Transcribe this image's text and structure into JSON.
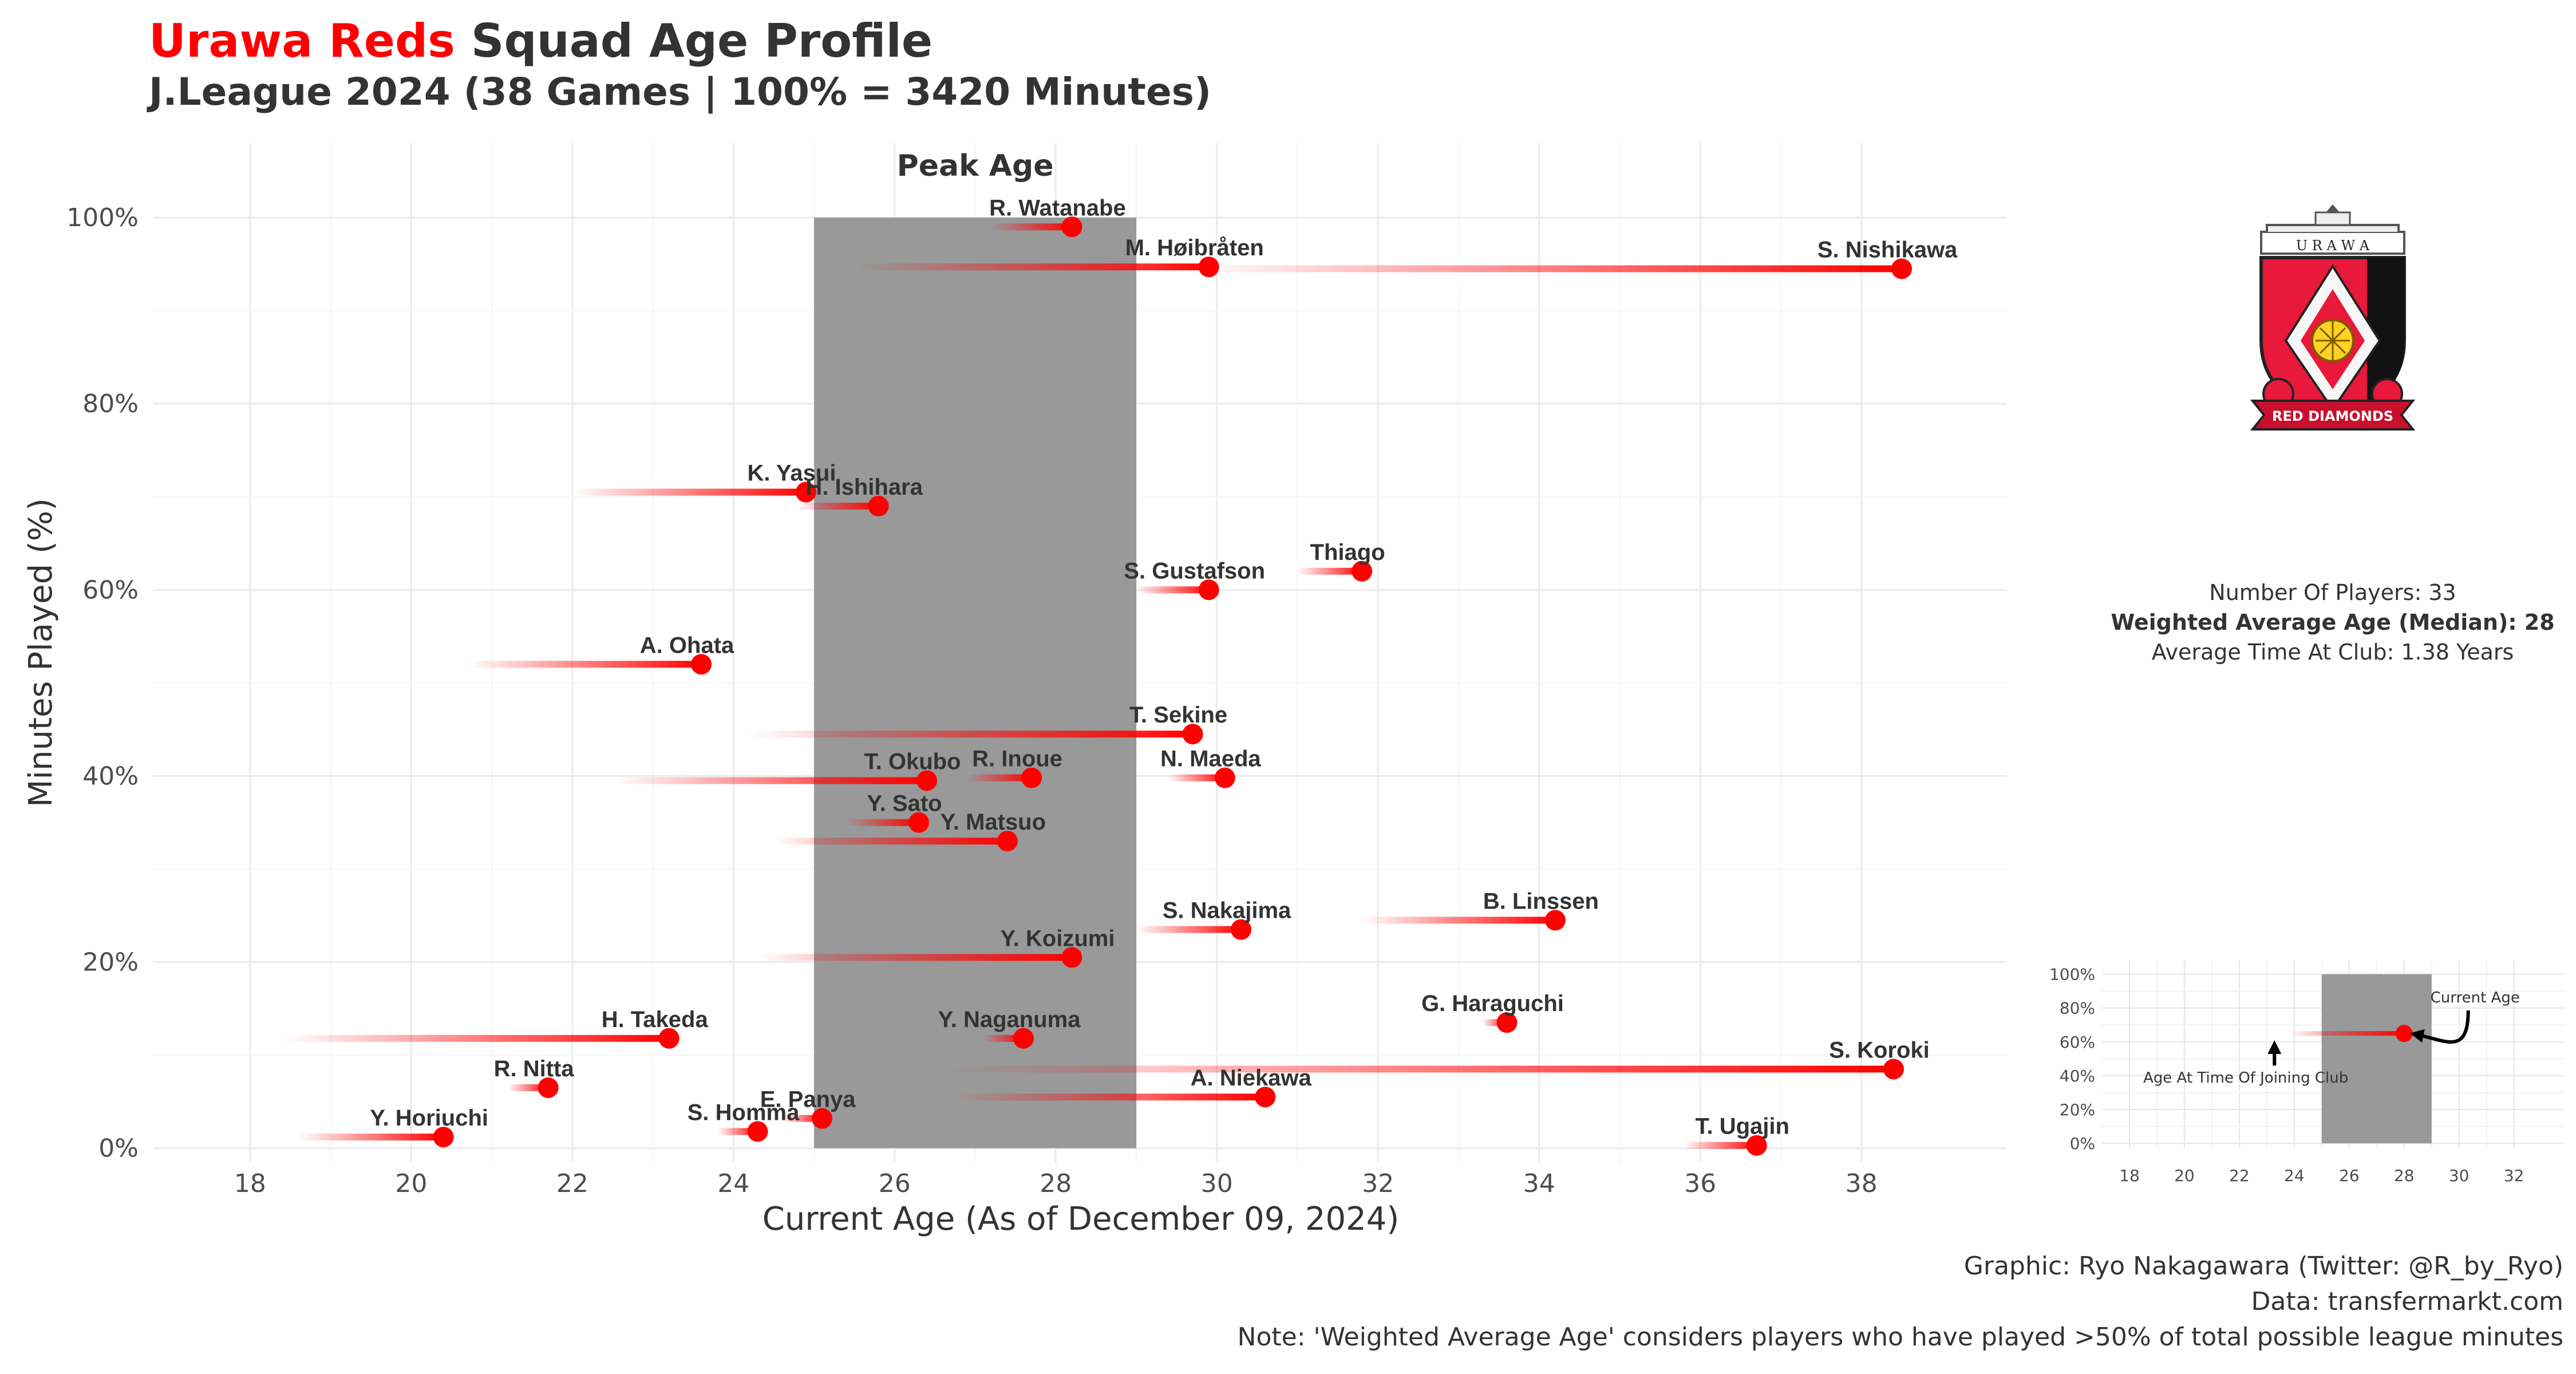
{
  "title": {
    "club": "Urawa Reds",
    "main": "Squad Age Profile",
    "subtitle": "J.League 2024 (38 Games | 100% = 3420 Minutes)"
  },
  "peak_label": "Peak Age",
  "stats": {
    "players": "Number Of Players: 33",
    "weighted_age": "Weighted Average Age (Median): 28",
    "time_at_club": "Average Time At Club: 1.38 Years"
  },
  "caption": {
    "graphic": "Graphic: Ryo Nakagawara (Twitter: @R_by_Ryo)",
    "data": "Data: transfermarkt.com",
    "note": "Note: 'Weighted Average Age' considers players who have played >50% of total possible league minutes"
  },
  "logo_text": {
    "top": "U R A W A",
    "banner": "RED DIAMONDS"
  },
  "chart_data": [
    {
      "type": "scatter",
      "xlabel": "Current Age (As of December 09, 2024)",
      "ylabel": "Minutes Played (%)",
      "xlim": [
        16.8,
        39.8
      ],
      "ylim": [
        -1.5,
        108
      ],
      "xticks": [
        18,
        20,
        22,
        24,
        26,
        28,
        30,
        32,
        34,
        36,
        38
      ],
      "xtick_labels": [
        "18",
        "20",
        "22",
        "24",
        "26",
        "28",
        "30",
        "32",
        "34",
        "36",
        "38"
      ],
      "yticks": [
        0,
        20,
        40,
        60,
        80,
        100
      ],
      "ytick_labels": [
        "0%",
        "20%",
        "40%",
        "60%",
        "80%",
        "100%"
      ],
      "grid": true,
      "peak_age_range": [
        25,
        29
      ],
      "colors": {
        "point": "#ff0000",
        "segment": "#ff0000",
        "peak_band": "#999999"
      },
      "players": [
        {
          "name": "R. Watanabe",
          "age": 28.2,
          "join_age": 27.2,
          "minutes_pct": 99
        },
        {
          "name": "M. Høibråten",
          "age": 29.9,
          "join_age": 25.5,
          "minutes_pct": 94.7
        },
        {
          "name": "S. Nishikawa",
          "age": 38.5,
          "join_age": 29.7,
          "minutes_pct": 94.5
        },
        {
          "name": "K. Yasui",
          "age": 24.9,
          "join_age": 22,
          "minutes_pct": 70.5
        },
        {
          "name": "H. Ishihara",
          "age": 25.8,
          "join_age": 24.8,
          "minutes_pct": 69
        },
        {
          "name": "Thiago",
          "age": 31.8,
          "join_age": 31,
          "minutes_pct": 62
        },
        {
          "name": "S. Gustafson",
          "age": 29.9,
          "join_age": 29,
          "minutes_pct": 60
        },
        {
          "name": "A. Ohata",
          "age": 23.6,
          "join_age": 20.7,
          "minutes_pct": 52
        },
        {
          "name": "T. Sekine",
          "age": 29.7,
          "join_age": 24.2,
          "minutes_pct": 44.5
        },
        {
          "name": "T. Okubo",
          "age": 26.4,
          "join_age": 22.5,
          "minutes_pct": 39.5
        },
        {
          "name": "R. Inoue",
          "age": 27.7,
          "join_age": 26.9,
          "minutes_pct": 39.8
        },
        {
          "name": "N. Maeda",
          "age": 30.1,
          "join_age": 29.4,
          "minutes_pct": 39.8
        },
        {
          "name": "Y. Sato",
          "age": 26.3,
          "join_age": 25.4,
          "minutes_pct": 35
        },
        {
          "name": "Y. Matsuo",
          "age": 27.4,
          "join_age": 24.5,
          "minutes_pct": 33
        },
        {
          "name": "B. Linssen",
          "age": 34.2,
          "join_age": 31.8,
          "minutes_pct": 24.5
        },
        {
          "name": "S. Nakajima",
          "age": 30.3,
          "join_age": 29,
          "minutes_pct": 23.5
        },
        {
          "name": "Y. Koizumi",
          "age": 28.2,
          "join_age": 24.3,
          "minutes_pct": 20.5
        },
        {
          "name": "G. Haraguchi",
          "age": 33.6,
          "join_age": 33.3,
          "minutes_pct": 13.5
        },
        {
          "name": "H. Takeda",
          "age": 23.2,
          "join_age": 18.4,
          "minutes_pct": 11.8
        },
        {
          "name": "Y. Naganuma",
          "age": 27.6,
          "join_age": 27.1,
          "minutes_pct": 11.8
        },
        {
          "name": "S. Koroki",
          "age": 38.4,
          "join_age": 26.5,
          "minutes_pct": 8.5
        },
        {
          "name": "R. Nitta",
          "age": 21.7,
          "join_age": 21.2,
          "minutes_pct": 6.5
        },
        {
          "name": "A. Niekawa",
          "age": 30.6,
          "join_age": 26.7,
          "minutes_pct": 5.5
        },
        {
          "name": "E. Panya",
          "age": 25.1,
          "join_age": 24.6,
          "minutes_pct": 3.2
        },
        {
          "name": "S. Homma",
          "age": 24.3,
          "join_age": 23.8,
          "minutes_pct": 1.8
        },
        {
          "name": "Y. Horiuchi",
          "age": 20.4,
          "join_age": 18.6,
          "minutes_pct": 1.2
        },
        {
          "name": "T. Ugajin",
          "age": 36.7,
          "join_age": 35.8,
          "minutes_pct": 0.3
        }
      ]
    },
    {
      "type": "scatter",
      "xlim": [
        17,
        33.8
      ],
      "ylim": [
        -3,
        108
      ],
      "xticks": [
        18,
        20,
        22,
        24,
        26,
        28,
        30,
        32
      ],
      "xtick_labels": [
        "18",
        "20",
        "22",
        "24",
        "26",
        "28",
        "30",
        "32"
      ],
      "yticks": [
        0,
        20,
        40,
        60,
        80,
        100
      ],
      "ytick_labels": [
        "0%",
        "20%",
        "40%",
        "60%",
        "80%",
        "100%"
      ],
      "grid": true,
      "peak_age_range": [
        25,
        29
      ],
      "example_player": {
        "age": 28,
        "join_age": 23.8,
        "minutes_pct": 65
      },
      "annotations": {
        "current_age": "Current Age",
        "join_age": "Age At Time Of Joining Club"
      }
    }
  ]
}
